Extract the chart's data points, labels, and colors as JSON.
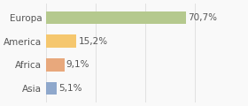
{
  "categories": [
    "Asia",
    "Africa",
    "America",
    "Europa"
  ],
  "values": [
    5.1,
    9.1,
    15.2,
    70.7
  ],
  "labels": [
    "5,1%",
    "9,1%",
    "15,2%",
    "70,7%"
  ],
  "bar_colors": [
    "#8fa8cc",
    "#e8a87c",
    "#f5c76e",
    "#b5c98e"
  ],
  "background_color": "#f9f9f9",
  "xlim": [
    0,
    100
  ],
  "label_fontsize": 7.5,
  "tick_fontsize": 7.5
}
